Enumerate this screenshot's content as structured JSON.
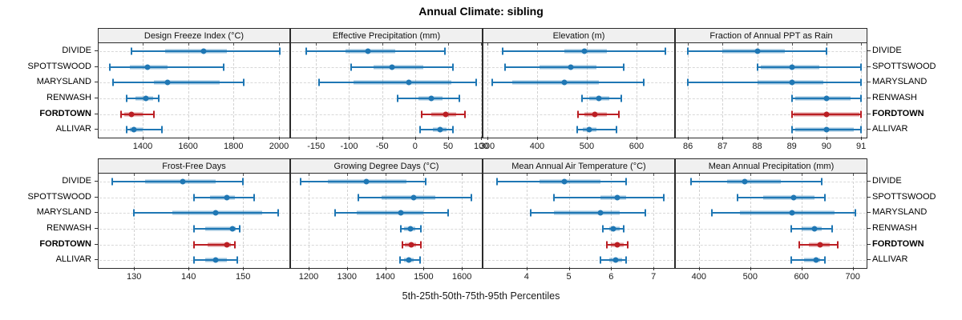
{
  "title": "Annual Climate: sibling",
  "caption": "5th-25th-50th-75th-95th Percentiles",
  "categories": [
    "DIVIDE",
    "SPOTTSWOOD",
    "MARYSLAND",
    "RENWASH",
    "FORDTOWN",
    "ALLIVAR"
  ],
  "highlight_category": "FORDTOWN",
  "percentile_labels": [
    "5th",
    "25th",
    "50th",
    "75th",
    "95th"
  ],
  "colors": {
    "normal": "#1f77b4",
    "highlight": "#bb1f24",
    "band_alpha": 0.45,
    "panel_header_bg": "#f0f0f0",
    "panel_border": "#2b2b2b",
    "grid": "#d2d2d2"
  },
  "chart_data": [
    {
      "type": "scatter",
      "style": "horizontal-percentile-intervals",
      "title": "Design Freeze Index (°C)",
      "xlim": [
        1206,
        2046
      ],
      "ticks": [
        1400,
        1600,
        1800,
        2000
      ],
      "series": [
        {
          "name": "DIVIDE",
          "percentiles": [
            1350,
            1500,
            1670,
            1770,
            2005
          ]
        },
        {
          "name": "SPOTTSWOOD",
          "percentiles": [
            1255,
            1345,
            1420,
            1510,
            1755
          ]
        },
        {
          "name": "MARYSLAND",
          "percentiles": [
            1270,
            1450,
            1510,
            1740,
            1845
          ]
        },
        {
          "name": "RENWASH",
          "percentiles": [
            1330,
            1370,
            1415,
            1445,
            1470
          ]
        },
        {
          "name": "FORDTOWN",
          "percentiles": [
            1305,
            1320,
            1350,
            1400,
            1450
          ]
        },
        {
          "name": "ALLIVAR",
          "percentiles": [
            1330,
            1345,
            1360,
            1400,
            1485
          ]
        }
      ]
    },
    {
      "type": "scatter",
      "style": "horizontal-percentile-intervals",
      "title": "Effective Precipitation (mm)",
      "xlim": [
        -188,
        101
      ],
      "ticks": [
        -150,
        -100,
        -50,
        0,
        50,
        100
      ],
      "series": [
        {
          "name": "DIVIDE",
          "percentiles": [
            -165,
            -105,
            -72,
            -30,
            45
          ]
        },
        {
          "name": "SPOTTSWOOD",
          "percentiles": [
            -97,
            -63,
            -35,
            12,
            57
          ]
        },
        {
          "name": "MARYSLAND",
          "percentiles": [
            -145,
            -93,
            -10,
            55,
            93
          ]
        },
        {
          "name": "RENWASH",
          "percentiles": [
            -27,
            5,
            25,
            42,
            67
          ]
        },
        {
          "name": "FORDTOWN",
          "percentiles": [
            10,
            25,
            46,
            62,
            76
          ]
        },
        {
          "name": "ALLIVAR",
          "percentiles": [
            8,
            27,
            38,
            48,
            57
          ]
        }
      ]
    },
    {
      "type": "scatter",
      "style": "horizontal-percentile-intervals",
      "title": "Elevation (m)",
      "xlim": [
        292,
        676
      ],
      "ticks": [
        300,
        400,
        500,
        600
      ],
      "series": [
        {
          "name": "DIVIDE",
          "percentiles": [
            330,
            455,
            495,
            540,
            658
          ]
        },
        {
          "name": "SPOTTSWOOD",
          "percentiles": [
            335,
            405,
            468,
            520,
            575
          ]
        },
        {
          "name": "MARYSLAND",
          "percentiles": [
            310,
            350,
            455,
            525,
            615
          ]
        },
        {
          "name": "RENWASH",
          "percentiles": [
            490,
            505,
            525,
            545,
            570
          ]
        },
        {
          "name": "FORDTOWN",
          "percentiles": [
            482,
            495,
            517,
            540,
            565
          ]
        },
        {
          "name": "ALLIVAR",
          "percentiles": [
            480,
            492,
            505,
            520,
            560
          ]
        }
      ]
    },
    {
      "type": "scatter",
      "style": "horizontal-percentile-intervals",
      "title": "Fraction of Annual PPT as Rain",
      "xlim": [
        85.65,
        91.16
      ],
      "ticks": [
        86,
        87,
        88,
        89,
        90,
        91
      ],
      "series": [
        {
          "name": "DIVIDE",
          "percentiles": [
            86,
            87,
            88,
            88.8,
            90
          ]
        },
        {
          "name": "SPOTTSWOOD",
          "percentiles": [
            88,
            88.1,
            89,
            89.8,
            91
          ]
        },
        {
          "name": "MARYSLAND",
          "percentiles": [
            86,
            88,
            89,
            89.9,
            91
          ]
        },
        {
          "name": "RENWASH",
          "percentiles": [
            89,
            89.1,
            90,
            90.7,
            91
          ]
        },
        {
          "name": "FORDTOWN",
          "percentiles": [
            89,
            89.05,
            90,
            90.95,
            91
          ]
        },
        {
          "name": "ALLIVAR",
          "percentiles": [
            89,
            89.1,
            90,
            90.8,
            91
          ]
        }
      ]
    },
    {
      "type": "scatter",
      "style": "horizontal-percentile-intervals",
      "title": "Frost-Free Days",
      "xlim": [
        123.5,
        158.5
      ],
      "ticks": [
        130,
        140,
        150
      ],
      "series": [
        {
          "name": "DIVIDE",
          "percentiles": [
            126,
            132,
            139,
            145,
            150
          ]
        },
        {
          "name": "SPOTTSWOOD",
          "percentiles": [
            141,
            144,
            147,
            148.5,
            152
          ]
        },
        {
          "name": "MARYSLAND",
          "percentiles": [
            130,
            137,
            145,
            153.5,
            156.5
          ]
        },
        {
          "name": "RENWASH",
          "percentiles": [
            141,
            143,
            148,
            148.6,
            149.4
          ]
        },
        {
          "name": "FORDTOWN",
          "percentiles": [
            141,
            143.5,
            147,
            147.8,
            148.5
          ]
        },
        {
          "name": "ALLIVAR",
          "percentiles": [
            141,
            143,
            145,
            147,
            149
          ]
        }
      ]
    },
    {
      "type": "scatter",
      "style": "horizontal-percentile-intervals",
      "title": "Growing Degree Days (°C)",
      "xlim": [
        1154,
        1652
      ],
      "ticks": [
        1200,
        1300,
        1400,
        1500,
        1600
      ],
      "series": [
        {
          "name": "DIVIDE",
          "percentiles": [
            1180,
            1250,
            1350,
            1455,
            1505
          ]
        },
        {
          "name": "SPOTTSWOOD",
          "percentiles": [
            1330,
            1390,
            1475,
            1530,
            1625
          ]
        },
        {
          "name": "MARYSLAND",
          "percentiles": [
            1270,
            1325,
            1440,
            1500,
            1565
          ]
        },
        {
          "name": "RENWASH",
          "percentiles": [
            1440,
            1450,
            1465,
            1478,
            1492
          ]
        },
        {
          "name": "FORDTOWN",
          "percentiles": [
            1445,
            1452,
            1468,
            1480,
            1492
          ]
        },
        {
          "name": "ALLIVAR",
          "percentiles": [
            1438,
            1448,
            1462,
            1475,
            1490
          ]
        }
      ]
    },
    {
      "type": "scatter",
      "style": "horizontal-percentile-intervals",
      "title": "Mean Annual Air Temperature (°C)",
      "xlim": [
        2.98,
        7.49
      ],
      "ticks": [
        4,
        5,
        6,
        7
      ],
      "series": [
        {
          "name": "DIVIDE",
          "percentiles": [
            3.3,
            4.3,
            4.9,
            5.75,
            6.35
          ]
        },
        {
          "name": "SPOTTSWOOD",
          "percentiles": [
            4.65,
            5.75,
            6.15,
            6.35,
            7.25
          ]
        },
        {
          "name": "MARYSLAND",
          "percentiles": [
            4.1,
            4.65,
            5.75,
            6.2,
            6.8
          ]
        },
        {
          "name": "RENWASH",
          "percentiles": [
            5.8,
            5.95,
            6.05,
            6.2,
            6.3
          ]
        },
        {
          "name": "FORDTOWN",
          "percentiles": [
            5.9,
            6.0,
            6.15,
            6.3,
            6.4
          ]
        },
        {
          "name": "ALLIVAR",
          "percentiles": [
            5.75,
            5.95,
            6.1,
            6.25,
            6.35
          ]
        }
      ]
    },
    {
      "type": "scatter",
      "style": "horizontal-percentile-intervals",
      "title": "Mean Annual Precipitation (mm)",
      "xlim": [
        355,
        727
      ],
      "ticks": [
        400,
        500,
        600,
        700
      ],
      "series": [
        {
          "name": "DIVIDE",
          "percentiles": [
            385,
            455,
            490,
            560,
            640
          ]
        },
        {
          "name": "SPOTTSWOOD",
          "percentiles": [
            475,
            525,
            585,
            625,
            645
          ]
        },
        {
          "name": "MARYSLAND",
          "percentiles": [
            425,
            480,
            582,
            665,
            705
          ]
        },
        {
          "name": "RENWASH",
          "percentiles": [
            580,
            600,
            625,
            640,
            660
          ]
        },
        {
          "name": "FORDTOWN",
          "percentiles": [
            595,
            615,
            637,
            655,
            670
          ]
        },
        {
          "name": "ALLIVAR",
          "percentiles": [
            580,
            605,
            628,
            637,
            645
          ]
        }
      ]
    }
  ]
}
